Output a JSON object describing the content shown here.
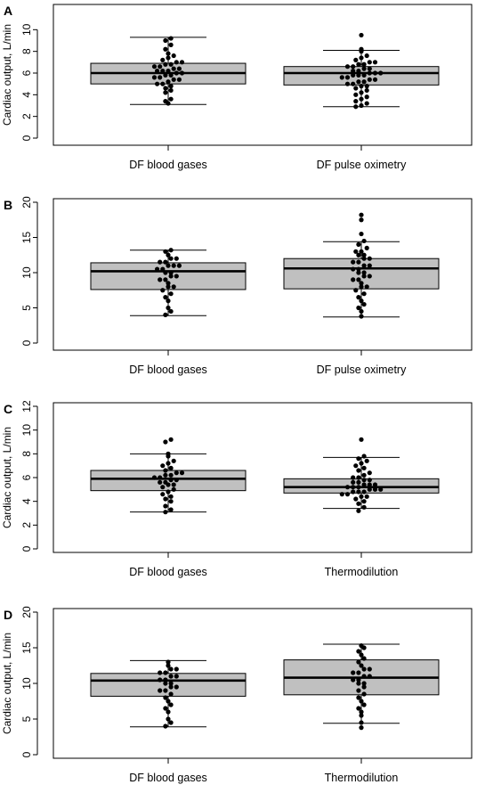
{
  "chart_data": [
    {
      "panel": "A",
      "type": "box",
      "ylabel": "Cardiac output, L/min",
      "ylim": [
        0,
        12
      ],
      "yticks": [
        0,
        2,
        4,
        6,
        8,
        10
      ],
      "categories": [
        "DF blood gases",
        "DF pulse oximetry"
      ],
      "boxes": [
        {
          "whisker_low": 3.1,
          "q1": 5.0,
          "median": 6.0,
          "q3": 6.9,
          "whisker_high": 9.3
        },
        {
          "whisker_low": 2.9,
          "q1": 4.9,
          "median": 6.0,
          "q3": 6.6,
          "whisker_high": 8.1
        }
      ],
      "points": [
        [
          3.2,
          3.4,
          3.6,
          4.2,
          4.4,
          4.6,
          4.8,
          5.0,
          5.0,
          5.2,
          5.4,
          5.4,
          5.6,
          5.6,
          5.8,
          5.8,
          6.0,
          6.0,
          6.2,
          6.2,
          6.2,
          6.4,
          6.4,
          6.6,
          6.6,
          6.8,
          6.8,
          7.0,
          7.0,
          7.2,
          7.4,
          7.6,
          7.8,
          8.2,
          8.6,
          9.0,
          9.2
        ],
        [
          2.9,
          3.0,
          3.2,
          3.4,
          3.6,
          3.8,
          4.0,
          4.2,
          4.4,
          4.6,
          4.8,
          4.8,
          5.0,
          5.0,
          5.2,
          5.2,
          5.4,
          5.4,
          5.6,
          5.6,
          5.8,
          5.8,
          5.8,
          6.0,
          6.0,
          6.0,
          6.2,
          6.2,
          6.4,
          6.4,
          6.6,
          6.6,
          6.8,
          6.8,
          7.0,
          7.0,
          7.2,
          7.4,
          7.6,
          8.0,
          8.2,
          9.5
        ]
      ]
    },
    {
      "panel": "B",
      "type": "box",
      "ylabel": "",
      "ylim": [
        0,
        20
      ],
      "yticks": [
        0,
        5,
        10,
        15,
        20
      ],
      "categories": [
        "DF blood gases",
        "DF pulse oximetry"
      ],
      "boxes": [
        {
          "whisker_low": 3.9,
          "q1": 7.6,
          "median": 10.2,
          "q3": 11.4,
          "whisker_high": 13.2
        },
        {
          "whisker_low": 3.7,
          "q1": 7.7,
          "median": 10.6,
          "q3": 12.0,
          "whisker_high": 14.4
        }
      ],
      "points": [
        [
          4.0,
          4.5,
          5.0,
          6.0,
          6.5,
          7.0,
          7.5,
          8.0,
          8.0,
          8.5,
          9.0,
          9.0,
          9.5,
          9.5,
          10.0,
          10.0,
          10.5,
          10.5,
          11.0,
          11.0,
          11.0,
          11.5,
          11.5,
          12.0,
          12.0,
          12.5,
          13.0,
          13.2
        ],
        [
          3.8,
          4.5,
          5.0,
          5.5,
          6.0,
          6.5,
          7.0,
          7.5,
          8.0,
          8.0,
          8.5,
          9.0,
          9.0,
          9.5,
          9.5,
          10.0,
          10.0,
          10.5,
          10.5,
          11.0,
          11.0,
          11.5,
          11.5,
          12.0,
          12.0,
          12.5,
          12.5,
          13.0,
          13.0,
          13.5,
          14.0,
          14.5,
          15.5,
          17.5,
          18.2
        ]
      ]
    },
    {
      "panel": "C",
      "type": "box",
      "ylabel": "Cardiac output, L/min",
      "ylim": [
        0,
        12
      ],
      "yticks": [
        0,
        2,
        4,
        6,
        8,
        10,
        12
      ],
      "categories": [
        "DF blood gases",
        "Thermodilution"
      ],
      "boxes": [
        {
          "whisker_low": 3.1,
          "q1": 4.9,
          "median": 5.9,
          "q3": 6.6,
          "whisker_high": 8.0
        },
        {
          "whisker_low": 3.4,
          "q1": 4.7,
          "median": 5.2,
          "q3": 5.9,
          "whisker_high": 7.7
        }
      ],
      "points": [
        [
          3.1,
          3.3,
          3.6,
          4.0,
          4.2,
          4.4,
          4.6,
          4.8,
          5.0,
          5.2,
          5.4,
          5.4,
          5.6,
          5.6,
          5.8,
          5.8,
          6.0,
          6.0,
          6.2,
          6.2,
          6.4,
          6.4,
          6.6,
          6.8,
          7.0,
          7.2,
          7.4,
          7.8,
          8.0,
          9.0,
          9.2
        ],
        [
          3.2,
          3.5,
          3.8,
          4.0,
          4.2,
          4.4,
          4.4,
          4.6,
          4.6,
          4.8,
          4.8,
          4.8,
          5.0,
          5.0,
          5.0,
          5.2,
          5.2,
          5.2,
          5.4,
          5.4,
          5.4,
          5.6,
          5.6,
          5.8,
          5.8,
          6.0,
          6.0,
          6.2,
          6.4,
          6.6,
          6.8,
          7.0,
          7.2,
          7.4,
          7.6,
          7.8,
          9.2
        ]
      ]
    },
    {
      "panel": "D",
      "type": "box",
      "ylabel": "Cardiac output, L/min",
      "ylim": [
        0,
        20
      ],
      "yticks": [
        0,
        5,
        10,
        15,
        20
      ],
      "categories": [
        "DF blood gases",
        "Thermodilution"
      ],
      "boxes": [
        {
          "whisker_low": 3.9,
          "q1": 8.2,
          "median": 10.4,
          "q3": 11.4,
          "whisker_high": 13.2
        },
        {
          "whisker_low": 4.4,
          "q1": 8.4,
          "median": 10.8,
          "q3": 13.3,
          "whisker_high": 15.5
        }
      ],
      "points": [
        [
          4.0,
          4.5,
          5.0,
          6.0,
          6.5,
          7.0,
          7.5,
          8.0,
          8.5,
          9.0,
          9.0,
          9.5,
          9.5,
          10.0,
          10.0,
          10.5,
          10.5,
          11.0,
          11.0,
          11.5,
          11.5,
          12.0,
          12.0,
          12.5,
          13.0
        ],
        [
          3.8,
          4.5,
          5.5,
          6.0,
          6.5,
          7.0,
          7.5,
          8.0,
          8.5,
          9.0,
          9.5,
          10.0,
          10.0,
          10.5,
          10.5,
          11.0,
          11.0,
          11.5,
          11.5,
          12.0,
          12.0,
          12.5,
          13.0,
          13.5,
          14.0,
          14.5,
          15.0,
          15.3
        ]
      ]
    }
  ]
}
